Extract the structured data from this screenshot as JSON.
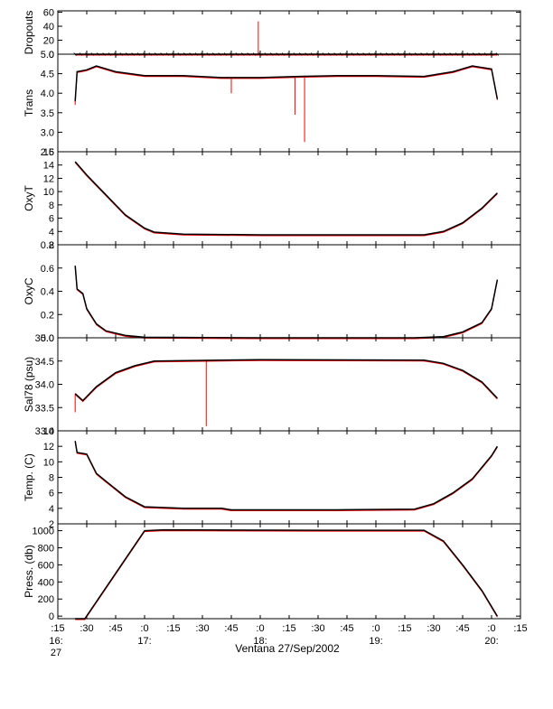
{
  "chart_data": {
    "type": "line",
    "caption": "Ventana 27/Sep/2002",
    "colors": {
      "raw": "#ff0000",
      "smoothed": "#000000",
      "frame": "#000000"
    },
    "x_axis": {
      "unit": "time",
      "start": "16:15",
      "end": "20:15",
      "ticks": [
        {
          "label": ":15",
          "sub": "",
          "min": 15
        },
        {
          "label": ":30",
          "sub": "",
          "min": 30
        },
        {
          "label": ":45",
          "sub": "",
          "min": 45
        },
        {
          "label": ":0",
          "sub": "17:",
          "min": 60
        },
        {
          "label": ":15",
          "sub": "",
          "min": 75
        },
        {
          "label": ":30",
          "sub": "",
          "min": 90
        },
        {
          "label": ":45",
          "sub": "",
          "min": 105
        },
        {
          "label": ":0",
          "sub": "18:",
          "min": 120
        },
        {
          "label": ":15",
          "sub": "",
          "min": 135
        },
        {
          "label": ":30",
          "sub": "",
          "min": 150
        },
        {
          "label": ":45",
          "sub": "",
          "min": 165
        },
        {
          "label": ":0",
          "sub": "19:",
          "min": 180
        },
        {
          "label": ":15",
          "sub": "",
          "min": 195
        },
        {
          "label": ":30",
          "sub": "",
          "min": 210
        },
        {
          "label": ":45",
          "sub": "",
          "min": 225
        },
        {
          "label": ":0",
          "sub": "20:",
          "min": 240
        },
        {
          "label": ":15",
          "sub": "",
          "min": 255
        }
      ],
      "origin_label": [
        "16:",
        "27"
      ]
    },
    "panels": [
      {
        "ylabel": "Dropouts",
        "ylim": [
          0,
          62
        ],
        "yticks": [
          "0",
          "20",
          "40",
          "60"
        ],
        "yvals": [
          0,
          20,
          40,
          60
        ],
        "extra_ticks": [
          {
            "label": "0",
            "val": 0
          }
        ],
        "series": [
          [
            24,
            0
          ],
          [
            60,
            0
          ],
          [
            120,
            0
          ],
          [
            180,
            0
          ],
          [
            243,
            0
          ]
        ],
        "spikes": [
          [
            119,
            47
          ]
        ]
      },
      {
        "ylabel": "Trans",
        "ylim": [
          2.5,
          5.0
        ],
        "yticks": [
          "2.5",
          "3.0",
          "3.5",
          "4.0",
          "4.5",
          "5.0"
        ],
        "yvals": [
          2.5,
          3.0,
          3.5,
          4.0,
          4.5,
          5.0
        ],
        "series": [
          [
            24,
            3.8
          ],
          [
            25,
            4.55
          ],
          [
            30,
            4.6
          ],
          [
            35,
            4.7
          ],
          [
            45,
            4.55
          ],
          [
            60,
            4.45
          ],
          [
            80,
            4.45
          ],
          [
            100,
            4.4
          ],
          [
            120,
            4.4
          ],
          [
            140,
            4.43
          ],
          [
            160,
            4.45
          ],
          [
            180,
            4.45
          ],
          [
            205,
            4.43
          ],
          [
            220,
            4.55
          ],
          [
            230,
            4.7
          ],
          [
            240,
            4.62
          ],
          [
            243,
            3.85
          ]
        ],
        "spikes": [
          [
            138,
            3.45
          ],
          [
            143,
            2.75
          ],
          [
            105,
            4.0
          ],
          [
            24,
            3.7
          ]
        ]
      },
      {
        "ylabel": "OxyT",
        "ylim": [
          2,
          16
        ],
        "yticks": [
          "2",
          "4",
          "6",
          "8",
          "10",
          "12",
          "14",
          "16"
        ],
        "yvals": [
          2,
          4,
          6,
          8,
          10,
          12,
          14,
          16
        ],
        "series": [
          [
            24,
            14.5
          ],
          [
            30,
            12.5
          ],
          [
            40,
            9.5
          ],
          [
            50,
            6.5
          ],
          [
            60,
            4.5
          ],
          [
            65,
            3.9
          ],
          [
            80,
            3.6
          ],
          [
            120,
            3.5
          ],
          [
            160,
            3.5
          ],
          [
            205,
            3.5
          ],
          [
            215,
            4.0
          ],
          [
            225,
            5.3
          ],
          [
            235,
            7.5
          ],
          [
            243,
            9.8
          ]
        ],
        "spikes": []
      },
      {
        "ylabel": "OxyC",
        "ylim": [
          0,
          0.8
        ],
        "yticks": [
          "0.0",
          "0.2",
          "0.4",
          "0.6",
          "0.8"
        ],
        "yvals": [
          0,
          0.2,
          0.4,
          0.6,
          0.8
        ],
        "series": [
          [
            24,
            0.62
          ],
          [
            25,
            0.42
          ],
          [
            28,
            0.38
          ],
          [
            30,
            0.25
          ],
          [
            35,
            0.12
          ],
          [
            40,
            0.06
          ],
          [
            50,
            0.02
          ],
          [
            60,
            0.005
          ],
          [
            120,
            0.0
          ],
          [
            200,
            0.0
          ],
          [
            215,
            0.01
          ],
          [
            225,
            0.05
          ],
          [
            235,
            0.13
          ],
          [
            240,
            0.25
          ],
          [
            243,
            0.5
          ]
        ],
        "spikes": []
      },
      {
        "ylabel": "Sal78 (psu)",
        "ylim": [
          33.0,
          35.0
        ],
        "yticks": [
          "33.0",
          "33.5",
          "34.0",
          "34.5",
          "35.0"
        ],
        "yvals": [
          33.0,
          33.5,
          34.0,
          34.5,
          35.0
        ],
        "series": [
          [
            24,
            33.8
          ],
          [
            28,
            33.65
          ],
          [
            35,
            33.95
          ],
          [
            45,
            34.25
          ],
          [
            55,
            34.4
          ],
          [
            65,
            34.5
          ],
          [
            120,
            34.53
          ],
          [
            205,
            34.52
          ],
          [
            215,
            34.45
          ],
          [
            225,
            34.3
          ],
          [
            235,
            34.05
          ],
          [
            243,
            33.7
          ]
        ],
        "spikes": [
          [
            92,
            33.1
          ],
          [
            24,
            33.4
          ]
        ]
      },
      {
        "ylabel": "Temp. (C)",
        "ylim": [
          2,
          14
        ],
        "yticks": [
          "2",
          "4",
          "6",
          "8",
          "10",
          "12",
          "14"
        ],
        "yvals": [
          2,
          4,
          6,
          8,
          10,
          12,
          14
        ],
        "series": [
          [
            24,
            12.7
          ],
          [
            25,
            11.2
          ],
          [
            30,
            11.0
          ],
          [
            35,
            8.5
          ],
          [
            40,
            7.5
          ],
          [
            50,
            5.5
          ],
          [
            60,
            4.2
          ],
          [
            80,
            4.0
          ],
          [
            100,
            4.0
          ],
          [
            105,
            3.8
          ],
          [
            160,
            3.8
          ],
          [
            200,
            3.9
          ],
          [
            210,
            4.6
          ],
          [
            220,
            6.0
          ],
          [
            230,
            7.8
          ],
          [
            240,
            10.8
          ],
          [
            243,
            12.0
          ]
        ],
        "spikes": []
      },
      {
        "ylabel": "Press. (db)",
        "ylim": [
          -30,
          1080
        ],
        "yticks": [
          "0",
          "200",
          "400",
          "600",
          "800",
          "1000"
        ],
        "yvals": [
          0,
          200,
          400,
          600,
          800,
          1000
        ],
        "series": [
          [
            24,
            -30
          ],
          [
            29,
            -30
          ],
          [
            60,
            1000
          ],
          [
            70,
            1010
          ],
          [
            150,
            1005
          ],
          [
            205,
            1005
          ],
          [
            215,
            880
          ],
          [
            225,
            600
          ],
          [
            235,
            300
          ],
          [
            243,
            0
          ]
        ],
        "spikes": []
      }
    ]
  }
}
